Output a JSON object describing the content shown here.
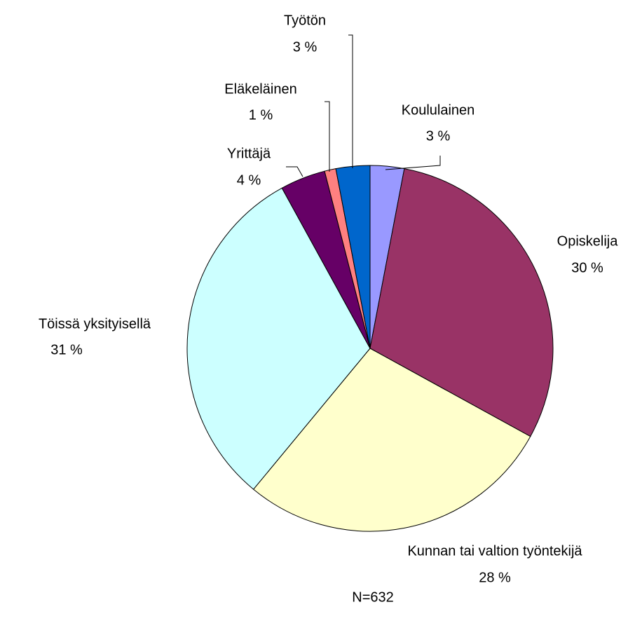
{
  "chart_data": {
    "type": "pie",
    "categories": [
      "Koululainen",
      "Opiskelija",
      "Kunnan tai valtion työntekijä",
      "Töissä yksityisellä",
      "Yrittäjä",
      "Eläkeläinen",
      "Työtön"
    ],
    "values": [
      3,
      30,
      28,
      31,
      4,
      1,
      3
    ],
    "value_labels": [
      "3 %",
      "30 %",
      "28 %",
      "31 %",
      "4 %",
      "1 %",
      "3 %"
    ],
    "colors": [
      "#9999ff",
      "#993366",
      "#ffffcc",
      "#ccffff",
      "#660066",
      "#ff8080",
      "#0066cc"
    ],
    "note": "N=632"
  }
}
